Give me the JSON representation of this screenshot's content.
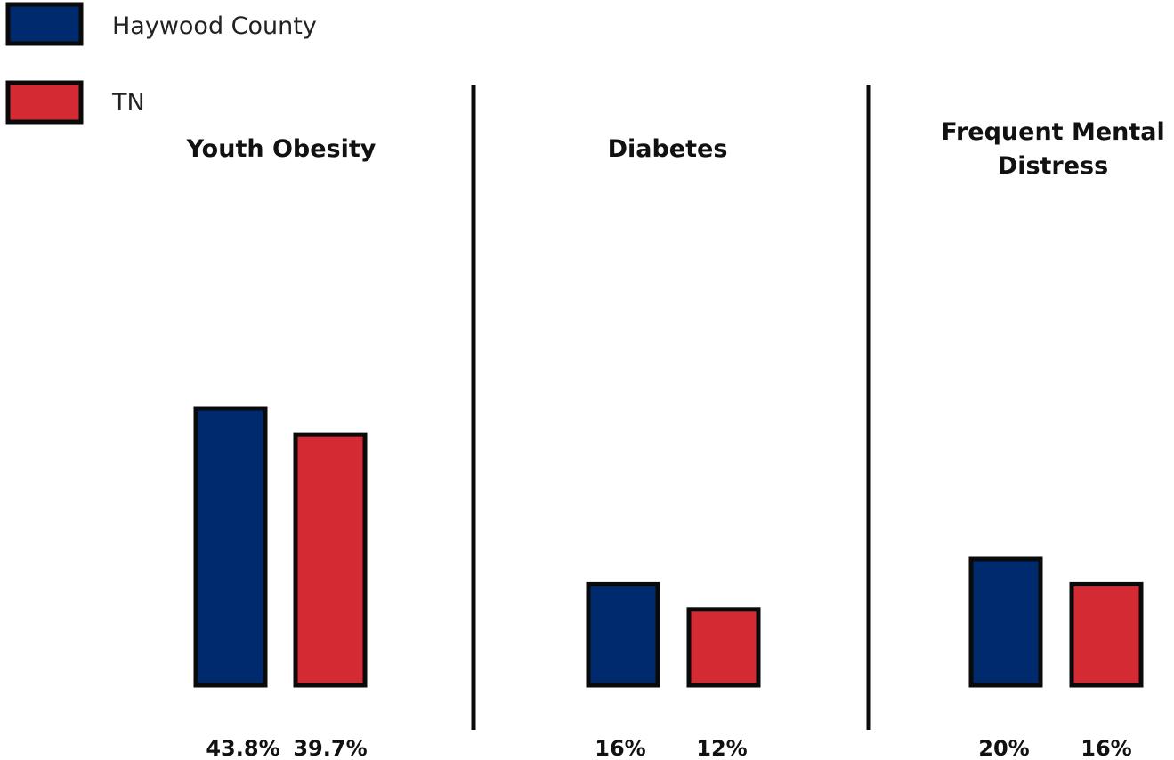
{
  "chart_data": {
    "type": "bar",
    "legend": {
      "position": "top-left",
      "entries": [
        {
          "name": "Haywood County",
          "color": "#002a6e"
        },
        {
          "name": "TN",
          "color": "#d42a34"
        }
      ]
    },
    "grid": false,
    "panels": [
      {
        "title_lines": [
          "Youth Obesity"
        ],
        "bars": [
          {
            "series": "Haywood County",
            "value": 43.8,
            "label": "43.8%"
          },
          {
            "series": "TN",
            "value": 39.7,
            "label": "39.7%"
          }
        ]
      },
      {
        "title_lines": [
          "Diabetes"
        ],
        "bars": [
          {
            "series": "Haywood County",
            "value": 16,
            "label": "16%"
          },
          {
            "series": "TN",
            "value": 12,
            "label": "12%"
          }
        ]
      },
      {
        "title_lines": [
          "Frequent Mental",
          "Distress"
        ],
        "bars": [
          {
            "series": "Haywood County",
            "value": 20,
            "label": "20%"
          },
          {
            "series": "TN",
            "value": 16,
            "label": "16%"
          }
        ]
      }
    ]
  }
}
